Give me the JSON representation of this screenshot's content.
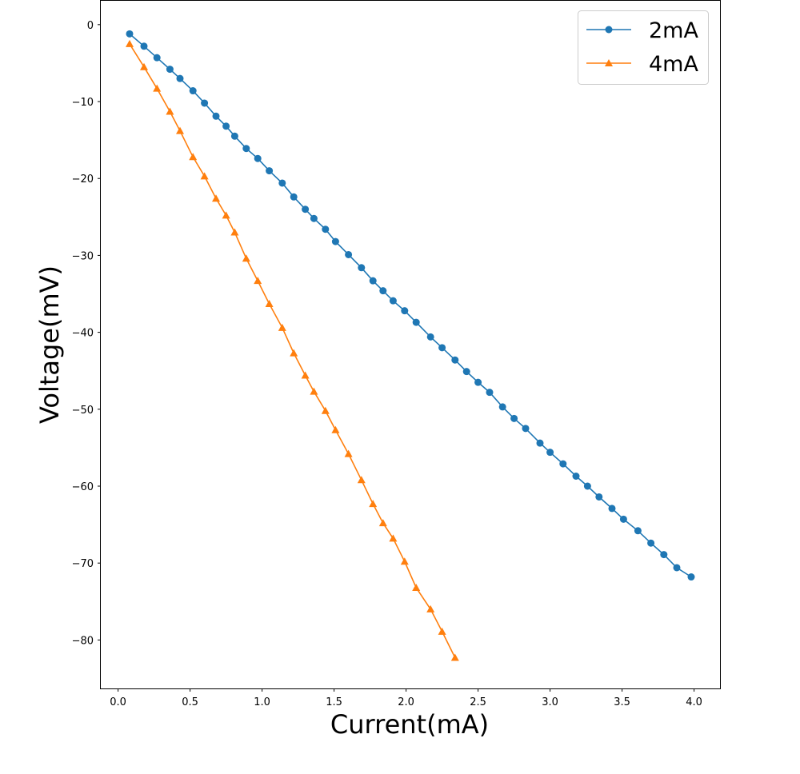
{
  "chart_data": {
    "type": "line",
    "title": "",
    "xlabel": "Current(mA)",
    "ylabel": "Voltage(mV)",
    "xlim": [
      -0.12,
      4.18
    ],
    "ylim": [
      -86.3,
      3.1
    ],
    "xticks": [
      0.0,
      0.5,
      1.0,
      1.5,
      2.0,
      2.5,
      3.0,
      3.5,
      4.0
    ],
    "xtick_labels": [
      "0.0",
      "0.5",
      "1.0",
      "1.5",
      "2.0",
      "2.5",
      "3.0",
      "3.5",
      "4.0"
    ],
    "yticks": [
      0,
      -10,
      -20,
      -30,
      -40,
      -50,
      -60,
      -70,
      -80
    ],
    "ytick_labels": [
      "0",
      "−10",
      "−20",
      "−30",
      "−40",
      "−50",
      "−60",
      "−70",
      "−80"
    ],
    "grid": false,
    "legend_position": "top-right",
    "series": [
      {
        "name": "2mA",
        "color": "#1f77b4",
        "marker": "circle",
        "x": [
          0.08,
          0.18,
          0.27,
          0.36,
          0.43,
          0.52,
          0.6,
          0.68,
          0.75,
          0.81,
          0.89,
          0.97,
          1.05,
          1.14,
          1.22,
          1.3,
          1.36,
          1.44,
          1.51,
          1.6,
          1.69,
          1.77,
          1.84,
          1.91,
          1.99,
          2.07,
          2.17,
          2.25,
          2.34,
          2.42,
          2.5,
          2.58,
          2.67,
          2.75,
          2.83,
          2.93,
          3.0,
          3.09,
          3.18,
          3.26,
          3.34,
          3.43,
          3.51,
          3.61,
          3.7,
          3.79,
          3.88,
          3.98
        ],
        "y": [
          -1.2,
          -2.8,
          -4.3,
          -5.8,
          -7.0,
          -8.6,
          -10.2,
          -11.9,
          -13.2,
          -14.5,
          -16.1,
          -17.4,
          -19.0,
          -20.6,
          -22.4,
          -24.0,
          -25.2,
          -26.6,
          -28.2,
          -29.9,
          -31.6,
          -33.3,
          -34.6,
          -35.9,
          -37.2,
          -38.7,
          -40.6,
          -42.0,
          -43.6,
          -45.1,
          -46.5,
          -47.8,
          -49.7,
          -51.2,
          -52.5,
          -54.4,
          -55.6,
          -57.1,
          -58.7,
          -60.0,
          -61.4,
          -62.9,
          -64.3,
          -65.8,
          -67.4,
          -68.9,
          -70.6,
          -71.8
        ]
      },
      {
        "name": "4mA",
        "color": "#ff7f0e",
        "marker": "triangle",
        "x": [
          0.08,
          0.18,
          0.27,
          0.36,
          0.43,
          0.52,
          0.6,
          0.68,
          0.75,
          0.81,
          0.89,
          0.97,
          1.05,
          1.14,
          1.22,
          1.3,
          1.36,
          1.44,
          1.51,
          1.6,
          1.69,
          1.77,
          1.84,
          1.91,
          1.99,
          2.07,
          2.17,
          2.25,
          2.34
        ],
        "y": [
          -2.5,
          -5.5,
          -8.3,
          -11.3,
          -13.8,
          -17.2,
          -19.7,
          -22.6,
          -24.8,
          -27.0,
          -30.4,
          -33.3,
          -36.3,
          -39.4,
          -42.7,
          -45.6,
          -47.7,
          -50.2,
          -52.7,
          -55.8,
          -59.2,
          -62.3,
          -64.8,
          -66.8,
          -69.8,
          -73.2,
          -76.0,
          -78.9,
          -82.3
        ]
      }
    ]
  }
}
